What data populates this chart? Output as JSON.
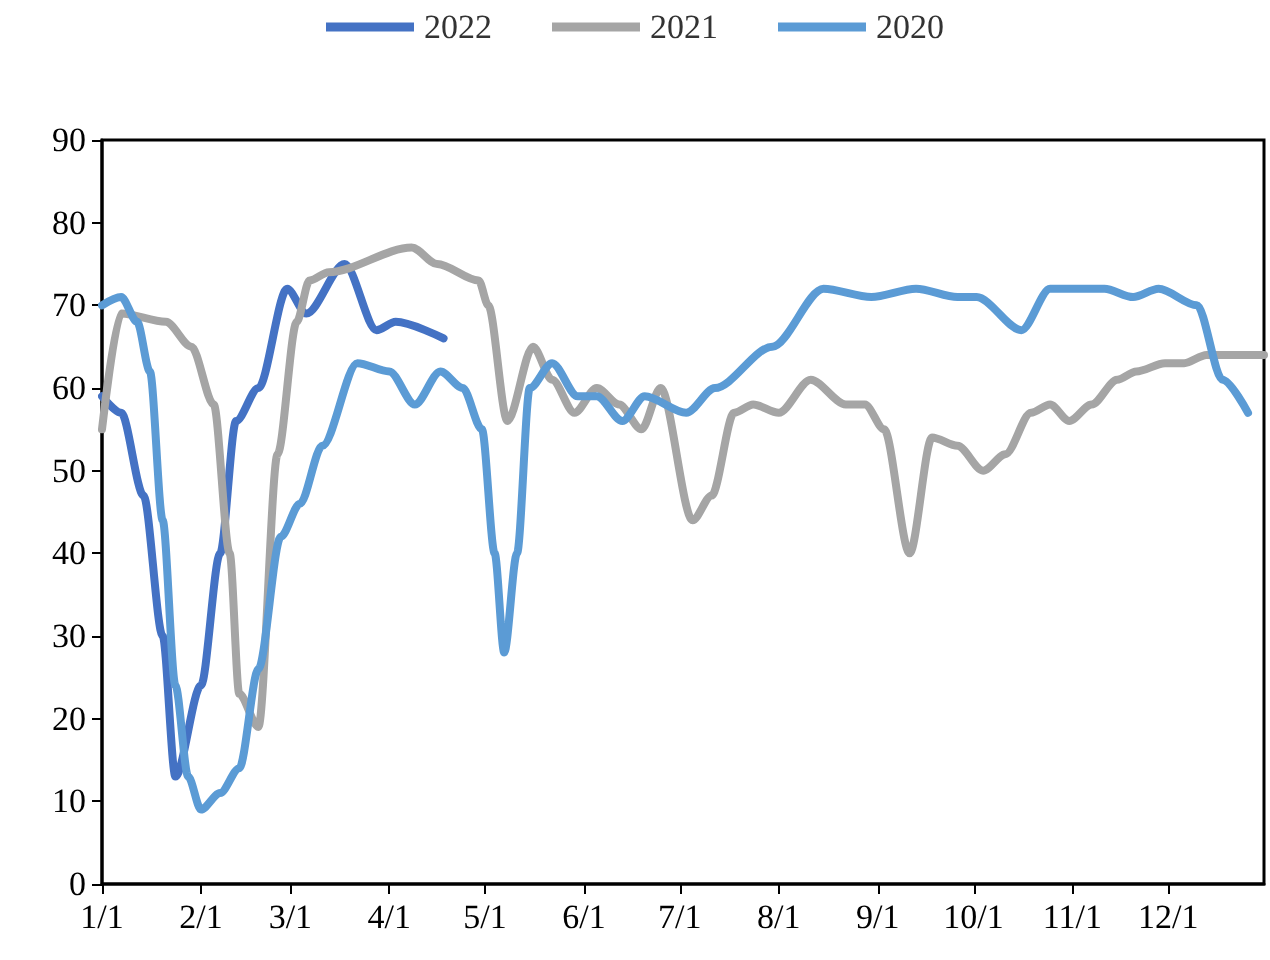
{
  "chart_data": {
    "type": "line",
    "legend": "top",
    "grid": false,
    "marker": "none",
    "line_style": "solid",
    "ylim": [
      0,
      90
    ],
    "yticks": [
      0,
      10,
      20,
      30,
      40,
      50,
      60,
      70,
      80,
      90
    ],
    "xlim": [
      "--01-01",
      "--12-31"
    ],
    "xticks": [
      {
        "value": "--01-01",
        "label": "1/1"
      },
      {
        "value": "--02-01",
        "label": "2/1"
      },
      {
        "value": "--03-01",
        "label": "3/1"
      },
      {
        "value": "--04-01",
        "label": "4/1"
      },
      {
        "value": "--05-01",
        "label": "5/1"
      },
      {
        "value": "--06-01",
        "label": "6/1"
      },
      {
        "value": "--07-01",
        "label": "7/1"
      },
      {
        "value": "--08-01",
        "label": "8/1"
      },
      {
        "value": "--09-01",
        "label": "9/1"
      },
      {
        "value": "--10-01",
        "label": "10/1"
      },
      {
        "value": "--11-01",
        "label": "11/1"
      },
      {
        "value": "--12-01",
        "label": "12/1"
      }
    ],
    "series": [
      {
        "name": "2022",
        "color": "#4472c4",
        "x": [
          "--01-01",
          "--01-07",
          "--01-14",
          "--01-20",
          "--01-24",
          "--02-01",
          "--02-07",
          "--02-12",
          "--02-19",
          "--02-28",
          "--03-06",
          "--03-18",
          "--03-28",
          "--04-03",
          "--04-18"
        ],
        "values": [
          59,
          57,
          47,
          30,
          13,
          24,
          40,
          56,
          60,
          72,
          69,
          75,
          67,
          68,
          66
        ]
      },
      {
        "name": "2021",
        "color": "#a5a5a5",
        "x": [
          "--01-01",
          "--01-07",
          "--01-21",
          "--01-29",
          "--02-05",
          "--02-10",
          "--02-13",
          "--02-19",
          "--02-25",
          "--03-03",
          "--03-07",
          "--03-13",
          "--04-08",
          "--04-16",
          "--04-29",
          "--05-02",
          "--05-08",
          "--05-16",
          "--05-22",
          "--05-29",
          "--06-05",
          "--06-12",
          "--06-19",
          "--06-25",
          "--07-05",
          "--07-11",
          "--07-18",
          "--07-24",
          "--08-01",
          "--08-11",
          "--08-22",
          "--08-28",
          "--09-03",
          "--09-11",
          "--09-18",
          "--09-26",
          "--10-04",
          "--10-11",
          "--10-19",
          "--10-25",
          "--10-31",
          "--11-07",
          "--11-15",
          "--11-21",
          "--11-30",
          "--12-06",
          "--12-13",
          "--12-31"
        ],
        "values": [
          55,
          69,
          68,
          65,
          58,
          40,
          23,
          19,
          52,
          68,
          73,
          74,
          77,
          75,
          73,
          70,
          56,
          65,
          61,
          57,
          60,
          58,
          55,
          60,
          44,
          47,
          57,
          58,
          57,
          61,
          58,
          58,
          55,
          40,
          54,
          53,
          50,
          52,
          57,
          58,
          56,
          58,
          61,
          62,
          63,
          63,
          64,
          64
        ]
      },
      {
        "name": "2020",
        "color": "#5b9bd5",
        "x": [
          "--01-01",
          "--01-07",
          "--01-12",
          "--01-16",
          "--01-20",
          "--01-24",
          "--01-28",
          "--02-01",
          "--02-07",
          "--02-13",
          "--02-19",
          "--02-26",
          "--03-04",
          "--03-11",
          "--03-22",
          "--04-01",
          "--04-09",
          "--04-17",
          "--04-24",
          "--04-30",
          "--05-04",
          "--05-07",
          "--05-11",
          "--05-15",
          "--05-22",
          "--05-30",
          "--06-05",
          "--06-13",
          "--06-20",
          "--07-03",
          "--07-12",
          "--07-30",
          "--08-15",
          "--08-30",
          "--09-13",
          "--09-26",
          "--10-02",
          "--10-16",
          "--10-25",
          "--11-11",
          "--11-20",
          "--11-28",
          "--12-10",
          "--12-18",
          "--12-26"
        ],
        "values": [
          70,
          71,
          68,
          62,
          44,
          24,
          13,
          9,
          11,
          14,
          26,
          42,
          46,
          53,
          63,
          62,
          58,
          62,
          60,
          55,
          40,
          28,
          40,
          60,
          63,
          59,
          59,
          56,
          59,
          57,
          60,
          65,
          72,
          71,
          72,
          71,
          71,
          67,
          72,
          72,
          71,
          72,
          70,
          61,
          57
        ]
      }
    ]
  }
}
